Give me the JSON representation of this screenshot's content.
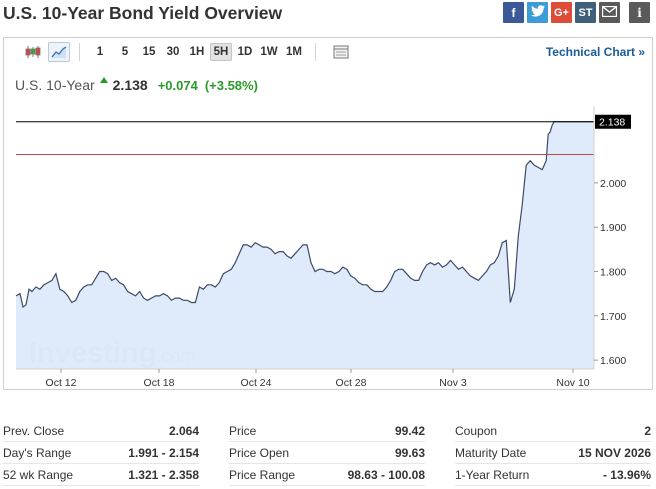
{
  "page": {
    "title": "U.S. 10-Year Bond Yield Overview"
  },
  "share": [
    {
      "name": "facebook-icon",
      "glyph": "f",
      "color": "#3b5998"
    },
    {
      "name": "twitter-icon",
      "glyph": "t",
      "color": "#3d9bd7"
    },
    {
      "name": "google-plus-icon",
      "glyph": "G+",
      "color": "#dd4b39"
    },
    {
      "name": "stocktwits-icon",
      "glyph": "ST",
      "color": "#3f5f7a"
    },
    {
      "name": "email-icon",
      "glyph": "",
      "color": "#5a5a5a"
    },
    {
      "name": "info-icon",
      "glyph": "i",
      "color": "#5a5a5a"
    }
  ],
  "toolbar": {
    "ranges": [
      "1",
      "5",
      "15",
      "30",
      "1H",
      "5H",
      "1D",
      "1W",
      "1M"
    ],
    "active_range": "5H",
    "technical_chart": "Technical Chart »"
  },
  "quote": {
    "name": "U.S. 10-Year",
    "price": "2.138",
    "change": "+0.074",
    "change_pct": "(+3.58%)",
    "direction": "up"
  },
  "chart_data": {
    "type": "area",
    "watermark_main": "Investing",
    "watermark_suffix": ".com",
    "ylim": [
      1.58,
      2.16
    ],
    "y_ticks": [
      "1.600",
      "1.700",
      "1.800",
      "1.900",
      "2.000"
    ],
    "x_ticks": [
      "Oct 12",
      "Oct 18",
      "Oct 24",
      "Oct 28",
      "Nov 3",
      "Nov 10"
    ],
    "last_value": "2.138",
    "prev_close": 2.064,
    "colors": {
      "line": "#3d4a66",
      "fill": "#dbe9fa",
      "prev_close_line": "#b94a48",
      "last_line": "#000000"
    },
    "series": [
      {
        "x": [
          0,
          4,
          7,
          10,
          13,
          16,
          20,
          24,
          28,
          32,
          36,
          40,
          44,
          48,
          52,
          56,
          60,
          64,
          68,
          72,
          76,
          80,
          84,
          88,
          92,
          96,
          100,
          104,
          108,
          112,
          116,
          120,
          124,
          128,
          132,
          136,
          140,
          144,
          148,
          152,
          156,
          160,
          164,
          168,
          172,
          176,
          180,
          184,
          188,
          192,
          196,
          200,
          204,
          208,
          212,
          216,
          220,
          224,
          228,
          232,
          236,
          240,
          244,
          248,
          252,
          256,
          260,
          264,
          268,
          272,
          276,
          280,
          284,
          288,
          292,
          296,
          300,
          304,
          308,
          312,
          316,
          320,
          324,
          328,
          332,
          336,
          340,
          344,
          348,
          352,
          356,
          360,
          364,
          368,
          372,
          376,
          380,
          384,
          388,
          392,
          396,
          400,
          404,
          408,
          412,
          416,
          420,
          424,
          428,
          432,
          436,
          440,
          444,
          448,
          452,
          456,
          460,
          464,
          468,
          472,
          476,
          480,
          484,
          488,
          492,
          496,
          500,
          504,
          508,
          512,
          516,
          520,
          524,
          528,
          532,
          534,
          536,
          538,
          540,
          542,
          544,
          548,
          552,
          556,
          560,
          563,
          566,
          570,
          573,
          576,
          580
        ],
        "values": [
          1.745,
          1.75,
          1.72,
          1.725,
          1.76,
          1.755,
          1.765,
          1.76,
          1.77,
          1.775,
          1.78,
          1.795,
          1.76,
          1.755,
          1.745,
          1.73,
          1.735,
          1.755,
          1.765,
          1.77,
          1.77,
          1.785,
          1.8,
          1.8,
          1.795,
          1.78,
          1.785,
          1.775,
          1.77,
          1.755,
          1.75,
          1.745,
          1.755,
          1.74,
          1.735,
          1.74,
          1.745,
          1.745,
          1.75,
          1.745,
          1.735,
          1.74,
          1.74,
          1.735,
          1.735,
          1.73,
          1.73,
          1.765,
          1.76,
          1.77,
          1.77,
          1.765,
          1.775,
          1.795,
          1.8,
          1.805,
          1.82,
          1.84,
          1.86,
          1.86,
          1.855,
          1.865,
          1.86,
          1.855,
          1.855,
          1.85,
          1.84,
          1.845,
          1.845,
          1.835,
          1.83,
          1.84,
          1.85,
          1.86,
          1.86,
          1.82,
          1.8,
          1.805,
          1.805,
          1.8,
          1.8,
          1.795,
          1.8,
          1.81,
          1.805,
          1.79,
          1.785,
          1.775,
          1.77,
          1.77,
          1.76,
          1.755,
          1.755,
          1.755,
          1.765,
          1.78,
          1.8,
          1.805,
          1.805,
          1.795,
          1.785,
          1.78,
          1.78,
          1.8,
          1.815,
          1.82,
          1.815,
          1.82,
          1.81,
          1.815,
          1.825,
          1.815,
          1.805,
          1.81,
          1.8,
          1.79,
          1.785,
          1.78,
          1.79,
          1.8,
          1.815,
          1.82,
          1.835,
          1.865,
          1.87,
          1.73,
          1.76,
          1.88,
          1.95,
          2.04,
          2.05,
          2.04,
          2.035,
          2.03,
          2.05,
          2.11,
          2.115,
          2.13,
          2.138,
          2.138,
          2.138,
          2.138,
          2.138,
          2.138,
          2.138,
          2.138,
          2.138,
          2.138,
          2.138,
          2.138,
          2.138
        ]
      }
    ]
  },
  "stats": {
    "col1": [
      {
        "label": "Prev. Close",
        "value": "2.064"
      },
      {
        "label": "Day's Range",
        "value": "1.991 - 2.154"
      },
      {
        "label": "52 wk Range",
        "value": "1.321 - 2.358"
      }
    ],
    "col2": [
      {
        "label": "Price",
        "value": "99.42"
      },
      {
        "label": "Price Open",
        "value": "99.63"
      },
      {
        "label": "Price Range",
        "value": "98.63 - 100.08"
      }
    ],
    "col3": [
      {
        "label": "Coupon",
        "value": "2"
      },
      {
        "label": "Maturity Date",
        "value": "15 NOV 2026"
      },
      {
        "label": "1-Year Return",
        "value": "- 13.96%"
      }
    ]
  }
}
